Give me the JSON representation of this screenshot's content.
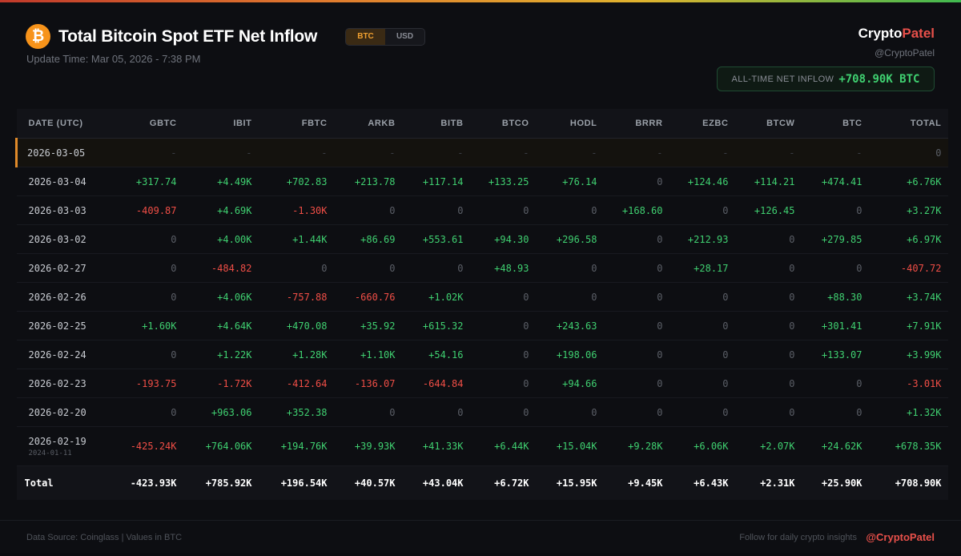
{
  "header": {
    "logo_glyph": "₿",
    "title": "Total Bitcoin Spot ETF Net Inflow",
    "toggle": [
      "BTC",
      "USD"
    ],
    "active_toggle": "BTC",
    "update_time": "Update Time: Mar 05, 2026 - 7:38 PM",
    "brand_part1": "Crypto",
    "brand_part2": "Patel",
    "handle": "@CryptoPatel",
    "ath_label": "ALL-TIME NET INFLOW",
    "ath_value": "+708.90K BTC"
  },
  "colors": {
    "positive": "#3fcf70",
    "negative": "#f04e46",
    "accent": "#f7931a",
    "brand": "#e8504a"
  },
  "table": {
    "columns": [
      "DATE (UTC)",
      "GBTC",
      "IBIT",
      "FBTC",
      "ARKB",
      "BITB",
      "BTCO",
      "HODL",
      "BRRR",
      "EZBC",
      "BTCW",
      "BTC",
      "TOTAL"
    ],
    "rows": [
      {
        "date": "2026-03-05",
        "sub": "",
        "values": [
          "-",
          "-",
          "-",
          "-",
          "-",
          "-",
          "-",
          "-",
          "-",
          "-",
          "-",
          "0"
        ]
      },
      {
        "date": "2026-03-04",
        "sub": "",
        "values": [
          "+317.74",
          "+4.49K",
          "+702.83",
          "+213.78",
          "+117.14",
          "+133.25",
          "+76.14",
          "0",
          "+124.46",
          "+114.21",
          "+474.41",
          "+6.76K"
        ]
      },
      {
        "date": "2026-03-03",
        "sub": "",
        "values": [
          "-409.87",
          "+4.69K",
          "-1.30K",
          "0",
          "0",
          "0",
          "0",
          "+168.60",
          "0",
          "+126.45",
          "0",
          "+3.27K"
        ]
      },
      {
        "date": "2026-03-02",
        "sub": "",
        "values": [
          "0",
          "+4.00K",
          "+1.44K",
          "+86.69",
          "+553.61",
          "+94.30",
          "+296.58",
          "0",
          "+212.93",
          "0",
          "+279.85",
          "+6.97K"
        ]
      },
      {
        "date": "2026-02-27",
        "sub": "",
        "values": [
          "0",
          "-484.82",
          "0",
          "0",
          "0",
          "+48.93",
          "0",
          "0",
          "+28.17",
          "0",
          "0",
          "-407.72"
        ]
      },
      {
        "date": "2026-02-26",
        "sub": "",
        "values": [
          "0",
          "+4.06K",
          "-757.88",
          "-660.76",
          "+1.02K",
          "0",
          "0",
          "0",
          "0",
          "0",
          "+88.30",
          "+3.74K"
        ]
      },
      {
        "date": "2026-02-25",
        "sub": "",
        "values": [
          "+1.60K",
          "+4.64K",
          "+470.08",
          "+35.92",
          "+615.32",
          "0",
          "+243.63",
          "0",
          "0",
          "0",
          "+301.41",
          "+7.91K"
        ]
      },
      {
        "date": "2026-02-24",
        "sub": "",
        "values": [
          "0",
          "+1.22K",
          "+1.28K",
          "+1.10K",
          "+54.16",
          "0",
          "+198.06",
          "0",
          "0",
          "0",
          "+133.07",
          "+3.99K"
        ]
      },
      {
        "date": "2026-02-23",
        "sub": "",
        "values": [
          "-193.75",
          "-1.72K",
          "-412.64",
          "-136.07",
          "-644.84",
          "0",
          "+94.66",
          "0",
          "0",
          "0",
          "0",
          "-3.01K"
        ]
      },
      {
        "date": "2026-02-20",
        "sub": "",
        "values": [
          "0",
          "+963.06",
          "+352.38",
          "0",
          "0",
          "0",
          "0",
          "0",
          "0",
          "0",
          "0",
          "+1.32K"
        ]
      },
      {
        "date": "2026-02-19",
        "sub": "2024-01-11",
        "values": [
          "-425.24K",
          "+764.06K",
          "+194.76K",
          "+39.93K",
          "+41.33K",
          "+6.44K",
          "+15.04K",
          "+9.28K",
          "+6.06K",
          "+2.07K",
          "+24.62K",
          "+678.35K"
        ]
      }
    ],
    "total": {
      "label": "Total",
      "values": [
        "-423.93K",
        "+785.92K",
        "+196.54K",
        "+40.57K",
        "+43.04K",
        "+6.72K",
        "+15.95K",
        "+9.45K",
        "+6.43K",
        "+2.31K",
        "+25.90K",
        "+708.90K"
      ]
    }
  },
  "footer": {
    "source": "Data Source: Coinglass | Values in BTC",
    "follow": "Follow for daily crypto insights",
    "handle": "@CryptoPatel"
  }
}
